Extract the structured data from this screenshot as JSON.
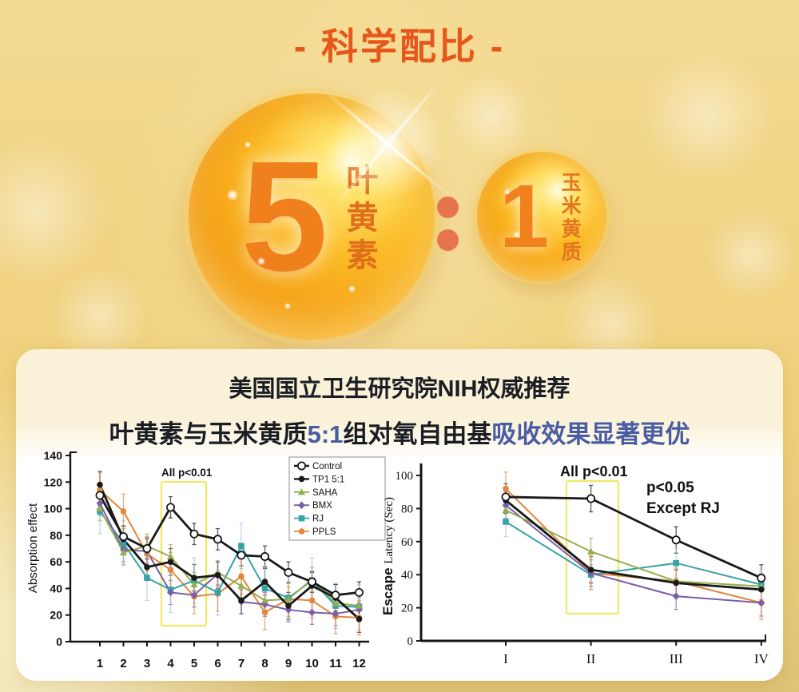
{
  "header": {
    "title": "- 科学配比 -"
  },
  "ratio": {
    "big_number": "5",
    "big_label": "叶黄素",
    "separator": ":",
    "small_number": "1",
    "small_label": "玉米黄质"
  },
  "card": {
    "heading1": "美国国立卫生研究院NIH权威推荐",
    "heading2_parts": [
      {
        "text": "叶黄素与玉米黄质",
        "tone": "dark"
      },
      {
        "text": "5:1",
        "tone": "blue"
      },
      {
        "text": "组对氧自由基",
        "tone": "dark"
      },
      {
        "text": "吸收效果显著更优",
        "tone": "blue"
      }
    ]
  },
  "colors": {
    "title_orange": "#E6571B",
    "number_orange": "#F0801C",
    "blue_text": "#4A5DA4",
    "heading_dark": "#1A1D24",
    "background_gold": "#F0D17D",
    "highlight_box_yellow": "#F0E554",
    "series_control": "#1A1A1A",
    "series_tp1": "#1A1A1A",
    "series_saha": "#95AE52",
    "series_bmx": "#7B5EA7",
    "series_rj": "#35A2A8",
    "series_ppls": "#E2873E"
  },
  "chart_data": [
    {
      "type": "line",
      "title": "",
      "xlabel": "",
      "ylabel": "Absorption effect",
      "categories": [
        "1",
        "2",
        "3",
        "4",
        "5",
        "6",
        "7",
        "8",
        "9",
        "10",
        "11",
        "12"
      ],
      "ylim": [
        0,
        140
      ],
      "yticks": [
        0,
        20,
        40,
        60,
        80,
        100,
        120,
        140
      ],
      "grid": false,
      "legend_position": "top-right-inside",
      "annotations": [
        "All p<0.01"
      ],
      "highlight": {
        "from_category": "4",
        "to_category": "5",
        "meaning": "All p<0.01"
      },
      "series": [
        {
          "name": "Control",
          "marker": "circle-open",
          "color": "#1A1A1A",
          "thick": true,
          "err": 8,
          "values": [
            110,
            79,
            70,
            101,
            81,
            77,
            65,
            64,
            52,
            45,
            35,
            37
          ]
        },
        {
          "name": "TP1 5:1",
          "marker": "circle-filled",
          "color": "#1A1A1A",
          "thick": true,
          "err": 10,
          "values": [
            118,
            77,
            56,
            60,
            48,
            50,
            31,
            45,
            27,
            42,
            33,
            17
          ]
        },
        {
          "name": "SAHA",
          "marker": "triangle",
          "color": "#95AE52",
          "thick": false,
          "err": 9,
          "values": [
            100,
            67,
            72,
            64,
            43,
            52,
            42,
            31,
            32,
            47,
            29,
            27
          ]
        },
        {
          "name": "BMX",
          "marker": "diamond",
          "color": "#7B5EA7",
          "thick": false,
          "err": 9,
          "values": [
            104,
            69,
            68,
            37,
            35,
            51,
            30,
            28,
            24,
            22,
            21,
            24
          ]
        },
        {
          "name": "RJ",
          "marker": "square",
          "color": "#35A2A8",
          "thick": false,
          "err": 17,
          "err_color": "#A9C6DD",
          "values": [
            98,
            74,
            48,
            39,
            46,
            37,
            72,
            40,
            33,
            46,
            27,
            26
          ]
        },
        {
          "name": "PPLS",
          "marker": "circle-filled",
          "color": "#E2873E",
          "thick": false,
          "err": 13,
          "values": [
            114,
            98,
            66,
            54,
            34,
            36,
            49,
            22,
            32,
            31,
            19,
            18
          ]
        }
      ]
    },
    {
      "type": "line",
      "title": "",
      "xlabel": "",
      "ylabel": "Escape Latency (Sec)",
      "ylabel_parts": [
        "Escape",
        "Latency (Sec)"
      ],
      "categories": [
        "I",
        "II",
        "III",
        "IV"
      ],
      "ylim": [
        0,
        110
      ],
      "yticks": [
        0,
        20,
        40,
        60,
        80,
        100
      ],
      "grid": false,
      "legend_position": "none",
      "annotations": [
        "All p<0.01",
        "p<0.05",
        "Except RJ"
      ],
      "highlight": {
        "at_category": "II",
        "meaning": "All p<0.01"
      },
      "series": [
        {
          "name": "Control",
          "marker": "circle-open",
          "color": "#1A1A1A",
          "thick": true,
          "err": 8,
          "values": [
            87,
            86,
            61,
            38
          ]
        },
        {
          "name": "TP1 5:1",
          "marker": "circle-filled",
          "color": "#1A1A1A",
          "thick": true,
          "err": 8,
          "values": [
            85,
            43,
            35,
            31
          ]
        },
        {
          "name": "SAHA",
          "marker": "triangle",
          "color": "#95AE52",
          "thick": false,
          "err": 8,
          "values": [
            79,
            54,
            36,
            33
          ]
        },
        {
          "name": "BMX",
          "marker": "diamond",
          "color": "#7B5EA7",
          "thick": false,
          "err": 8,
          "values": [
            82,
            41,
            27,
            23
          ]
        },
        {
          "name": "RJ",
          "marker": "square",
          "color": "#35A2A8",
          "thick": false,
          "err": 9,
          "err_color": "#A9C6DD",
          "values": [
            72,
            40,
            47,
            34
          ]
        },
        {
          "name": "PPLS",
          "marker": "circle-filled",
          "color": "#E2873E",
          "thick": false,
          "err": 10,
          "values": [
            92,
            41,
            36,
            23
          ]
        }
      ]
    }
  ]
}
